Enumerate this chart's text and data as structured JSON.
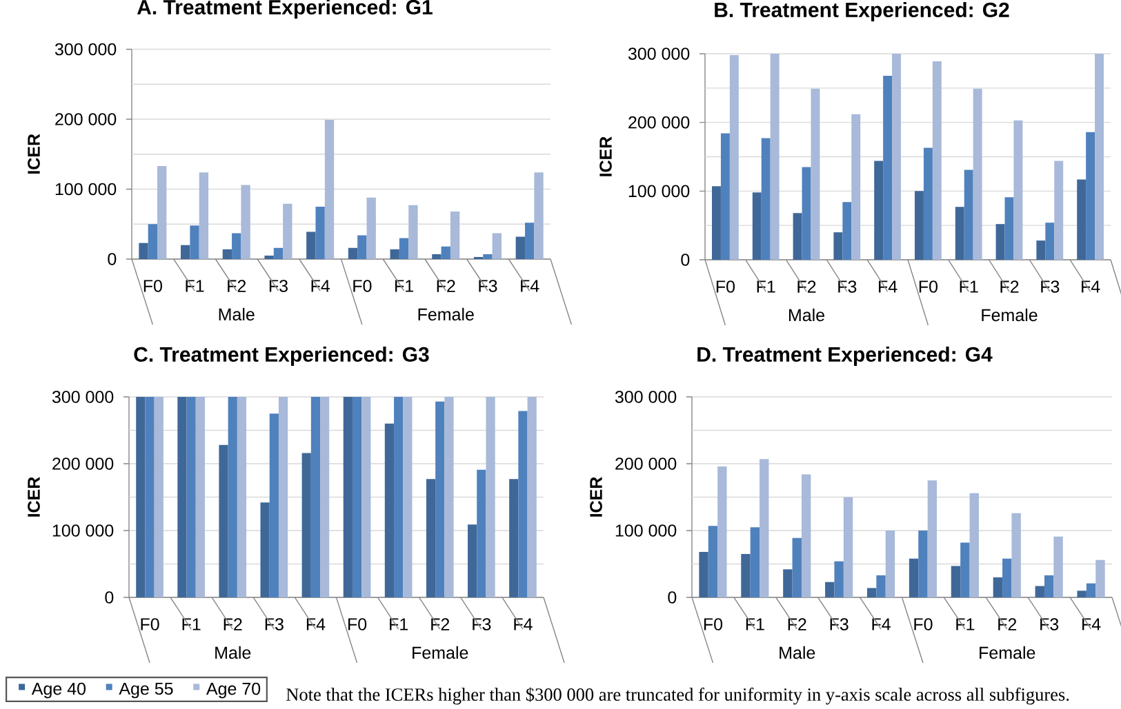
{
  "chart_data": [
    {
      "type": "bar",
      "title": "A. Treatment Experienced: G1",
      "ylabel": "ICER",
      "categories": [
        "F0",
        "F1",
        "F2",
        "F3",
        "F4",
        "F0",
        "F1",
        "F2",
        "F3",
        "F4"
      ],
      "annotations": [
        "Male",
        "Female"
      ],
      "series": [
        {
          "color": "#3f6899",
          "values": [
            23000,
            20000,
            14000,
            5000,
            39000,
            16000,
            14000,
            7000,
            3000,
            32000
          ]
        },
        {
          "color": "#4f81bd",
          "values": [
            50000,
            48000,
            37000,
            16000,
            75000,
            34000,
            30000,
            18000,
            7000,
            52000
          ]
        },
        {
          "color": "#a8b9d9",
          "values": [
            133000,
            124000,
            106000,
            79000,
            199000,
            88000,
            77000,
            68000,
            37000,
            124000
          ]
        }
      ],
      "ylim": [
        0,
        300000
      ],
      "yticks": [
        0,
        {
          "value": 50000,
          "label": null
        },
        {
          "value": 100000,
          "label": "100 000"
        },
        {
          "value": 150000,
          "label": null
        },
        {
          "value": 200000,
          "label": "200 000"
        },
        {
          "value": 250000,
          "label": null
        },
        {
          "value": 300000,
          "label": "300 000"
        }
      ],
      "grid": "y"
    },
    {
      "type": "bar",
      "title": "B. Treatment Experienced: G2",
      "ylabel": "ICER",
      "categories": [
        "F0",
        "F1",
        "F2",
        "F3",
        "F4",
        "F0",
        "F1",
        "F2",
        "F3",
        "F4"
      ],
      "annotations": [
        "Male",
        "Female"
      ],
      "series": [
        {
          "color": "#3f6899",
          "values": [
            107000,
            98000,
            68000,
            40000,
            144000,
            100000,
            77000,
            52000,
            28000,
            117000
          ]
        },
        {
          "color": "#4f81bd",
          "values": [
            184000,
            177000,
            135000,
            84000,
            268000,
            163000,
            131000,
            91000,
            54000,
            186000
          ]
        },
        {
          "color": "#a8b9d9",
          "values": [
            298000,
            300000,
            249000,
            212000,
            300000,
            289000,
            249000,
            203000,
            144000,
            300000
          ]
        }
      ],
      "ylim": [
        0,
        300000
      ],
      "yticks": [
        0,
        {
          "value": 50000,
          "label": null
        },
        {
          "value": 100000,
          "label": "100 000"
        },
        {
          "value": 150000,
          "label": null
        },
        {
          "value": 200000,
          "label": "200 000"
        },
        {
          "value": 250000,
          "label": null
        },
        {
          "value": 300000,
          "label": "300 000"
        }
      ],
      "grid": "y"
    },
    {
      "type": "bar",
      "title": "C. Treatment Experienced: G3",
      "ylabel": "ICER",
      "categories": [
        "F0",
        "F1",
        "F2",
        "F3",
        "F4",
        "F0",
        "F1",
        "F2",
        "F3",
        "F4"
      ],
      "annotations": [
        "Male",
        "Female"
      ],
      "series": [
        {
          "name": "Age 40",
          "color": "#3f6899",
          "values": [
            300000,
            300000,
            228000,
            142000,
            216000,
            300000,
            260000,
            177000,
            109000,
            177000
          ]
        },
        {
          "name": "Age 55",
          "color": "#4f81bd",
          "values": [
            300000,
            300000,
            300000,
            275000,
            300000,
            300000,
            300000,
            293000,
            191000,
            279000
          ]
        },
        {
          "name": "Age 70",
          "color": "#a8b9d9",
          "values": [
            300000,
            300000,
            300000,
            300000,
            300000,
            300000,
            300000,
            300000,
            300000,
            300000
          ]
        }
      ],
      "ylim": [
        0,
        300000
      ],
      "yticks": [
        0,
        {
          "value": 50000,
          "label": null
        },
        {
          "value": 100000,
          "label": "100 000"
        },
        {
          "value": 150000,
          "label": null
        },
        {
          "value": 200000,
          "label": "200 000"
        },
        {
          "value": 250000,
          "label": null
        },
        {
          "value": 300000,
          "label": "300 000"
        }
      ],
      "grid": "y",
      "legend": "bottom left"
    },
    {
      "type": "bar",
      "title": "D. Treatment Experienced: G4",
      "ylabel": "ICER",
      "categories": [
        "F0",
        "F1",
        "F2",
        "F3",
        "F4",
        "F0",
        "F1",
        "F2",
        "F3",
        "F4"
      ],
      "annotations": [
        "Male",
        "Female"
      ],
      "series": [
        {
          "color": "#3f6899",
          "values": [
            68000,
            65000,
            42000,
            23000,
            14000,
            58000,
            47000,
            30000,
            17000,
            10000
          ]
        },
        {
          "color": "#4f81bd",
          "values": [
            107000,
            105000,
            89000,
            54000,
            33000,
            100000,
            82000,
            58000,
            33000,
            21000
          ]
        },
        {
          "color": "#a8b9d9",
          "values": [
            196000,
            207000,
            184000,
            150000,
            100000,
            175000,
            156000,
            126000,
            91000,
            56000
          ]
        }
      ],
      "ylim": [
        0,
        300000
      ],
      "yticks": [
        0,
        {
          "value": 50000,
          "label": null
        },
        {
          "value": 100000,
          "label": "100 000"
        },
        {
          "value": 150000,
          "label": null
        },
        {
          "value": 200000,
          "label": "200 000"
        },
        {
          "value": 250000,
          "label": null
        },
        {
          "value": 300000,
          "label": "300 000"
        }
      ],
      "grid": "y"
    },
    {
      "type": "other",
      "annotations": [
        "Note that the ICERs higher than $300 000 are truncated for uniformity in y-axis scale across all subfigures."
      ]
    }
  ]
}
